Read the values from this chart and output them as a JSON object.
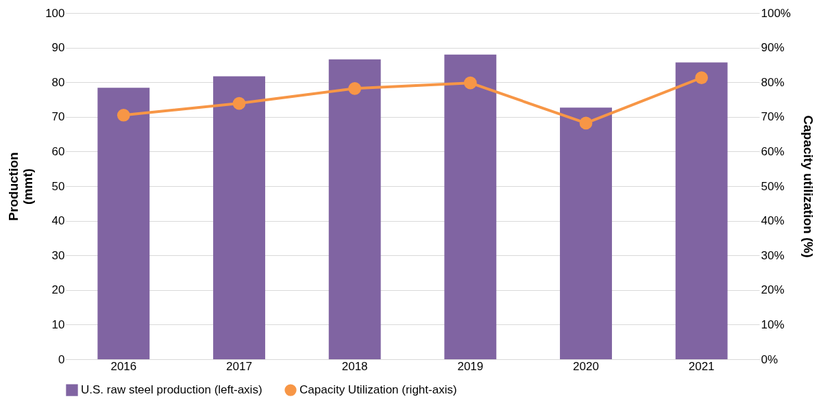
{
  "chart_data": {
    "type": "bar",
    "categories": [
      "2016",
      "2017",
      "2018",
      "2019",
      "2020",
      "2021"
    ],
    "ylabel": "Production (mmt)",
    "y2label": "Capacity utilization (%)",
    "ylim": [
      0,
      100
    ],
    "yticks": [
      0,
      10,
      20,
      30,
      40,
      50,
      60,
      70,
      80,
      90,
      100
    ],
    "y2lim": [
      0,
      100
    ],
    "y2ticks": [
      {
        "value": 0,
        "label": "0%"
      },
      {
        "value": 10,
        "label": "10%"
      },
      {
        "value": 20,
        "label": "20%"
      },
      {
        "value": 30,
        "label": "30%"
      },
      {
        "value": 40,
        "label": "40%"
      },
      {
        "value": 50,
        "label": "50%"
      },
      {
        "value": 60,
        "label": "60%"
      },
      {
        "value": 70,
        "label": "70%"
      },
      {
        "value": 80,
        "label": "80%"
      },
      {
        "value": 90,
        "label": "90%"
      },
      {
        "value": 100,
        "label": "100%"
      }
    ],
    "series": [
      {
        "name": "U.S. raw steel production (left-axis)",
        "color": "#8064a2",
        "values": [
          78.4,
          81.7,
          86.6,
          88.0,
          72.7,
          85.7
        ]
      },
      {
        "name": "Capacity Utilization (right-axis)",
        "type": "line",
        "axis": "y2",
        "color": "#f79646",
        "marker": "circle",
        "values": [
          70.5,
          73.9,
          78.2,
          79.8,
          68.2,
          81.3
        ]
      }
    ],
    "grid": "y",
    "legend": "bottom"
  }
}
